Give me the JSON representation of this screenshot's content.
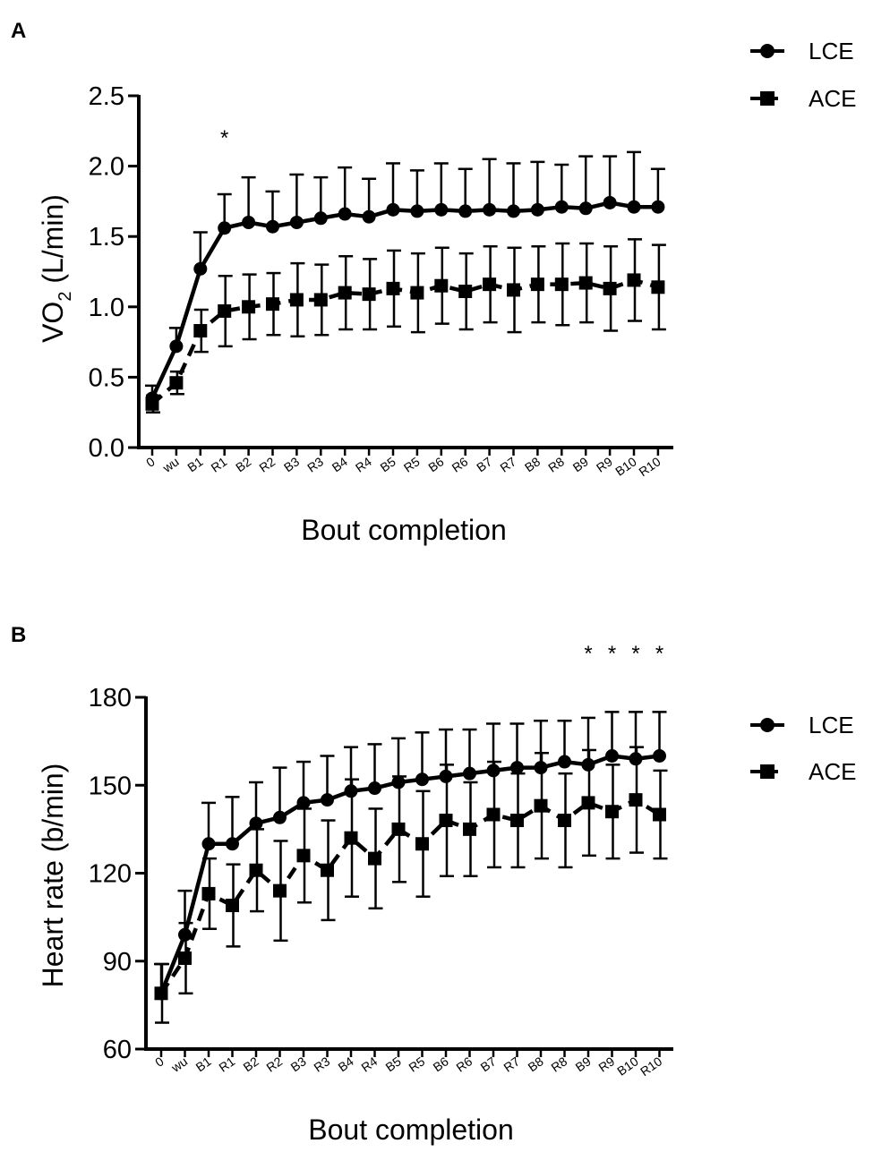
{
  "chart_data": [
    {
      "panel": "A",
      "type": "line",
      "xlabel": "Bout completion",
      "ylabel_main": "VO",
      "ylabel_sub": "2",
      "ylabel_rest": " (L/min)",
      "ylim": [
        0.0,
        2.5
      ],
      "yticks": [
        "0.0",
        "0.5",
        "1.0",
        "1.5",
        "2.0",
        "2.5"
      ],
      "ytick_values": [
        0.0,
        0.5,
        1.0,
        1.5,
        2.0,
        2.5
      ],
      "categories": [
        "0",
        "wu",
        "B1",
        "R1",
        "B2",
        "R2",
        "B3",
        "R3",
        "B4",
        "R4",
        "B5",
        "R5",
        "B6",
        "R6",
        "B7",
        "R7",
        "B8",
        "R8",
        "B9",
        "R9",
        "B10",
        "R10"
      ],
      "series": [
        {
          "name": "LCE",
          "marker": "circle",
          "line": "solid",
          "values": [
            0.35,
            0.72,
            1.27,
            1.56,
            1.6,
            1.57,
            1.6,
            1.63,
            1.66,
            1.64,
            1.69,
            1.68,
            1.69,
            1.68,
            1.69,
            1.68,
            1.69,
            1.71,
            1.7,
            1.74,
            1.71,
            1.71
          ],
          "error": [
            0.09,
            0.13,
            0.26,
            0.24,
            0.32,
            0.25,
            0.34,
            0.29,
            0.33,
            0.27,
            0.33,
            0.29,
            0.33,
            0.3,
            0.36,
            0.34,
            0.34,
            0.3,
            0.37,
            0.33,
            0.39,
            0.27
          ]
        },
        {
          "name": "ACE",
          "marker": "square",
          "line": "dashed",
          "values": [
            0.31,
            0.46,
            0.83,
            0.97,
            1.0,
            1.02,
            1.05,
            1.05,
            1.1,
            1.09,
            1.13,
            1.1,
            1.15,
            1.11,
            1.16,
            1.12,
            1.16,
            1.16,
            1.17,
            1.13,
            1.19,
            1.14
          ],
          "error": [
            0.06,
            0.08,
            0.15,
            0.25,
            0.23,
            0.22,
            0.26,
            0.25,
            0.26,
            0.25,
            0.27,
            0.28,
            0.27,
            0.27,
            0.27,
            0.3,
            0.27,
            0.29,
            0.28,
            0.3,
            0.29,
            0.3
          ]
        }
      ],
      "significance": [
        {
          "category": "R1",
          "label": "*"
        }
      ],
      "legend": {
        "items": [
          "LCE",
          "ACE"
        ],
        "placement": "top-right"
      }
    },
    {
      "panel": "B",
      "type": "line",
      "xlabel": "Bout completion",
      "ylabel": "Heart rate (b/min)",
      "ylim": [
        60,
        180
      ],
      "yticks": [
        "60",
        "90",
        "120",
        "150",
        "180"
      ],
      "ytick_values": [
        60,
        90,
        120,
        150,
        180
      ],
      "categories": [
        "0",
        "wu",
        "B1",
        "R1",
        "B2",
        "R2",
        "B3",
        "R3",
        "B4",
        "R4",
        "B5",
        "R5",
        "B6",
        "R6",
        "B7",
        "R7",
        "B8",
        "R8",
        "B9",
        "R9",
        "B10",
        "R10"
      ],
      "series": [
        {
          "name": "LCE",
          "marker": "circle",
          "line": "solid",
          "values": [
            79,
            99,
            130,
            130,
            137,
            139,
            144,
            145,
            148,
            149,
            151,
            152,
            153,
            154,
            155,
            156,
            156,
            158,
            157,
            160,
            159,
            160
          ],
          "error": [
            10,
            15,
            14,
            16,
            14,
            17,
            14,
            15,
            15,
            15,
            15,
            16,
            16,
            15,
            16,
            15,
            16,
            14,
            16,
            15,
            16,
            15
          ]
        },
        {
          "name": "ACE",
          "marker": "square",
          "line": "dashed",
          "values": [
            79,
            91,
            113,
            109,
            121,
            114,
            126,
            121,
            132,
            125,
            135,
            130,
            138,
            135,
            140,
            138,
            143,
            138,
            144,
            141,
            145,
            140
          ],
          "error": [
            10,
            12,
            12,
            14,
            14,
            17,
            16,
            17,
            20,
            17,
            18,
            18,
            19,
            16,
            18,
            16,
            18,
            16,
            18,
            16,
            18,
            15
          ]
        }
      ],
      "significance": [
        {
          "category": "B9",
          "label": "*"
        },
        {
          "category": "R9",
          "label": "*"
        },
        {
          "category": "B10",
          "label": "*"
        },
        {
          "category": "R10",
          "label": "*"
        }
      ],
      "legend": {
        "items": [
          "LCE",
          "ACE"
        ],
        "placement": "right"
      }
    }
  ]
}
